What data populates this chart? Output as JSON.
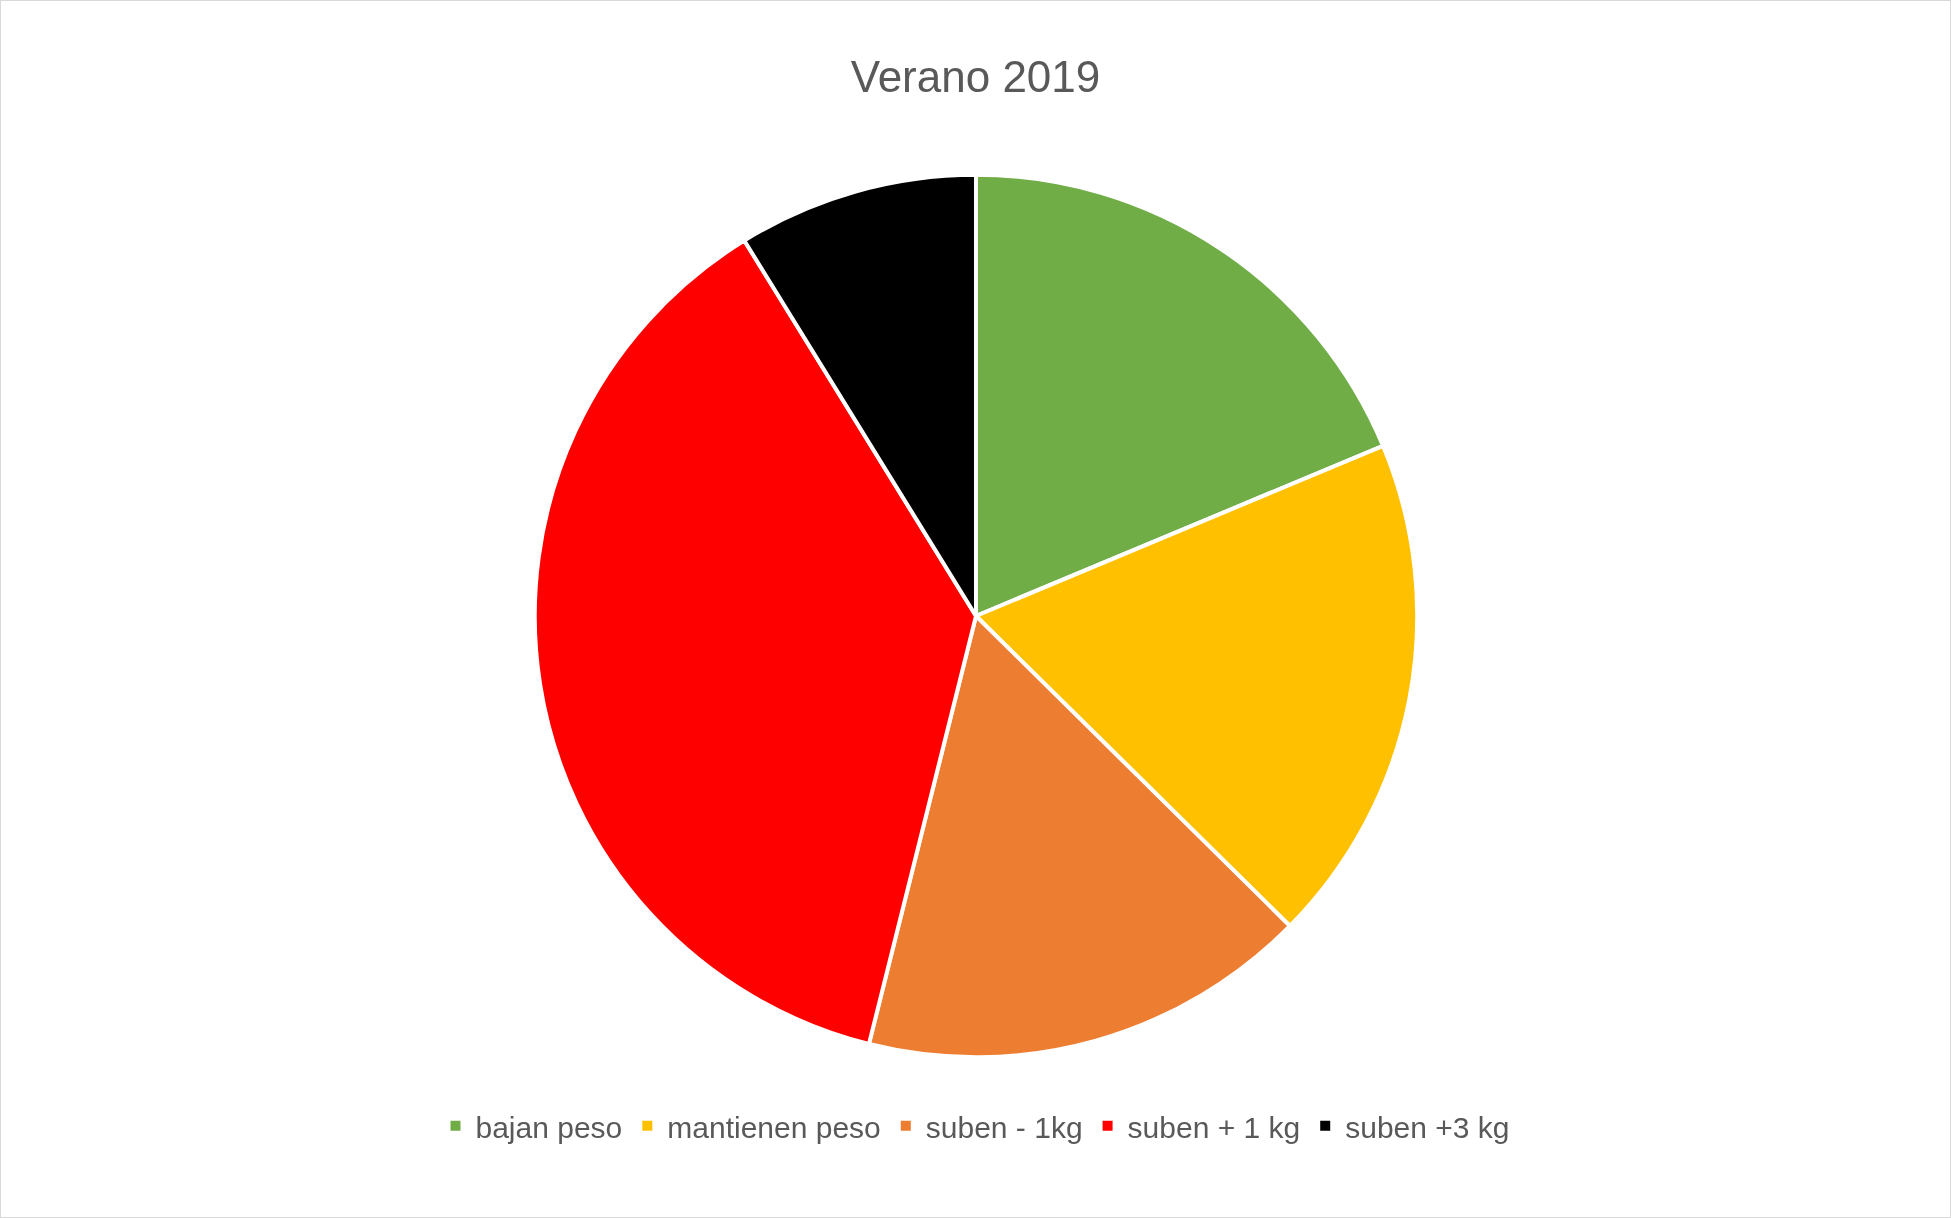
{
  "chart_data": {
    "type": "pie",
    "title": "Verano 2019",
    "categories": [
      "bajan peso",
      "mantienen peso",
      "suben - 1kg",
      "suben + 1 kg",
      "suben +3 kg"
    ],
    "values": [
      18.7,
      18.7,
      16.5,
      37.3,
      8.8
    ],
    "colors": [
      "#70ad47",
      "#ffc000",
      "#ed7d31",
      "#ff0000",
      "#000000"
    ],
    "legend": "bottom"
  }
}
